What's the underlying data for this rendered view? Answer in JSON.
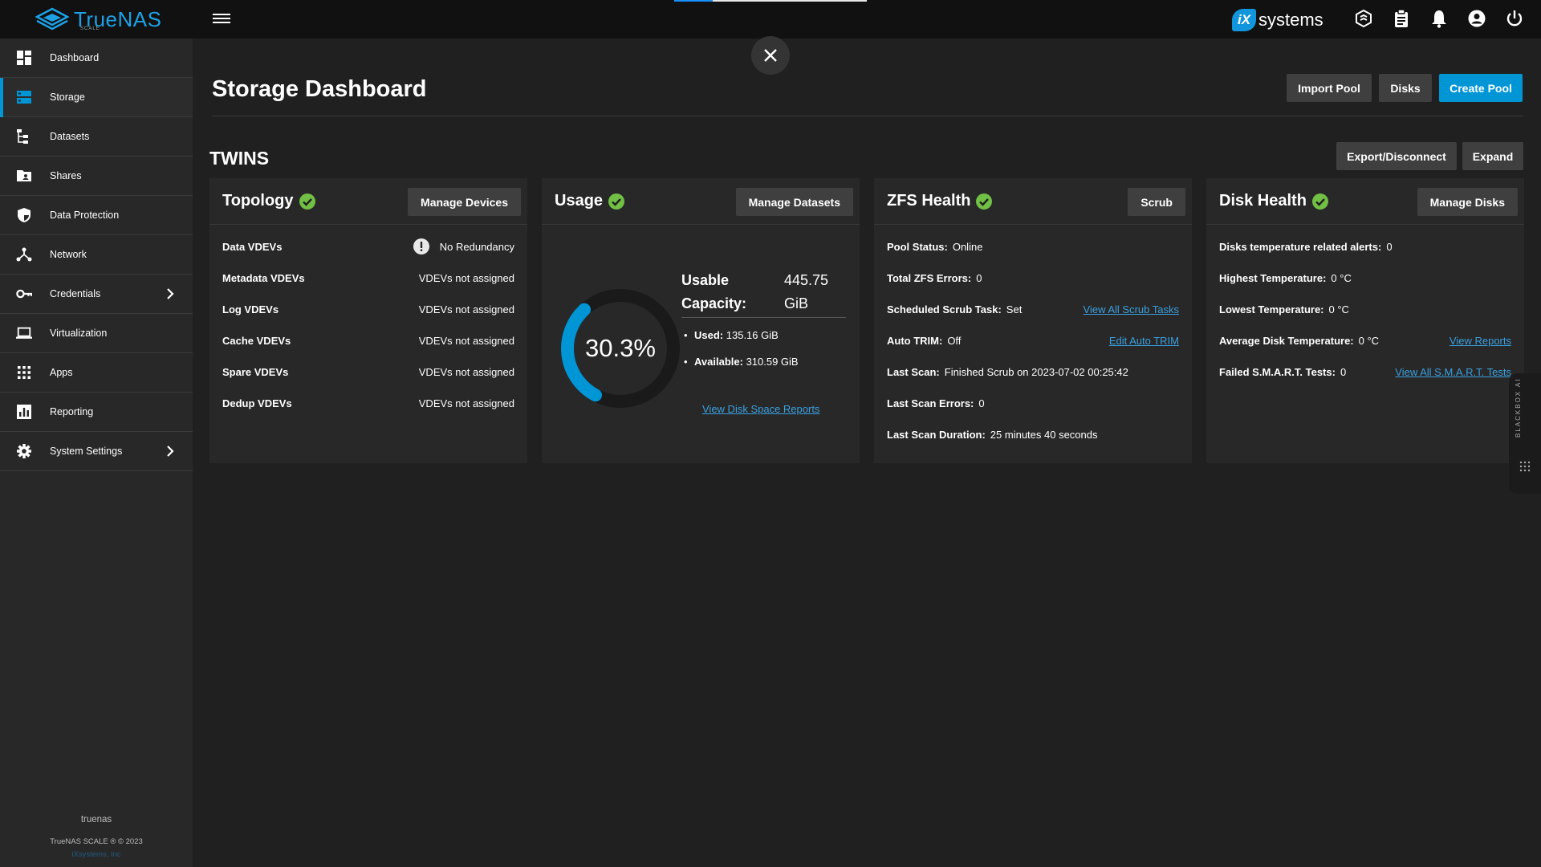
{
  "app": {
    "name": "TrueNAS",
    "sub": "SCALE",
    "vendor": "systems",
    "vendor_badge": "iX"
  },
  "sidebar": {
    "items": [
      {
        "label": "Dashboard",
        "icon": "dashboard-icon"
      },
      {
        "label": "Storage",
        "icon": "storage-icon"
      },
      {
        "label": "Datasets",
        "icon": "datasets-icon"
      },
      {
        "label": "Shares",
        "icon": "shares-icon"
      },
      {
        "label": "Data Protection",
        "icon": "shield-icon"
      },
      {
        "label": "Network",
        "icon": "network-icon"
      },
      {
        "label": "Credentials",
        "icon": "key-icon"
      },
      {
        "label": "Virtualization",
        "icon": "laptop-icon"
      },
      {
        "label": "Apps",
        "icon": "apps-grid-icon"
      },
      {
        "label": "Reporting",
        "icon": "bar-chart-icon"
      },
      {
        "label": "System Settings",
        "icon": "gear-icon"
      }
    ],
    "footer": {
      "hostname": "truenas",
      "copyright": "TrueNAS SCALE ® © 2023",
      "company": "iXsystems, Inc"
    }
  },
  "page": {
    "title": "Storage Dashboard",
    "import_pool": "Import Pool",
    "disks": "Disks",
    "create_pool": "Create Pool"
  },
  "pool": {
    "name": "TWINS",
    "export": "Export/Disconnect",
    "expand": "Expand"
  },
  "topology": {
    "title": "Topology",
    "button": "Manage Devices",
    "rows": [
      {
        "k": "Data VDEVs",
        "v": "No Redundancy"
      },
      {
        "k": "Metadata VDEVs",
        "v": "VDEVs not assigned"
      },
      {
        "k": "Log VDEVs",
        "v": "VDEVs not assigned"
      },
      {
        "k": "Cache VDEVs",
        "v": "VDEVs not assigned"
      },
      {
        "k": "Spare VDEVs",
        "v": "VDEVs not assigned"
      },
      {
        "k": "Dedup VDEVs",
        "v": "VDEVs not assigned"
      }
    ]
  },
  "usage": {
    "title": "Usage",
    "button": "Manage Datasets",
    "percent_text": "30.3%",
    "percent": 30.3,
    "cap_label_1": "Usable",
    "cap_label_2": "Capacity:",
    "cap_value_1": "445.75",
    "cap_value_2": "GiB",
    "used_k": "Used:",
    "used_v": "135.16 GiB",
    "avail_k": "Available:",
    "avail_v": "310.59 GiB",
    "link": "View Disk Space Reports"
  },
  "zfs": {
    "title": "ZFS Health",
    "button": "Scrub",
    "rows": [
      {
        "k": "Pool Status:",
        "v": "Online",
        "link": ""
      },
      {
        "k": "Total ZFS Errors:",
        "v": "0",
        "link": ""
      },
      {
        "k": "Scheduled Scrub Task:",
        "v": "Set",
        "link": "View All Scrub Tasks"
      },
      {
        "k": "Auto TRIM:",
        "v": "Off",
        "link": "Edit Auto TRIM"
      },
      {
        "k": "Last Scan:",
        "v": "Finished Scrub on 2023-07-02 00:25:42",
        "link": ""
      },
      {
        "k": "Last Scan Errors:",
        "v": "0",
        "link": ""
      },
      {
        "k": "Last Scan Duration:",
        "v": "25 minutes 40 seconds",
        "link": ""
      }
    ]
  },
  "disk": {
    "title": "Disk Health",
    "button": "Manage Disks",
    "rows": [
      {
        "k": "Disks temperature related alerts:",
        "v": "0",
        "link": ""
      },
      {
        "k": "Highest Temperature:",
        "v": "0 °C",
        "link": ""
      },
      {
        "k": "Lowest Temperature:",
        "v": "0 °C",
        "link": ""
      },
      {
        "k": "Average Disk Temperature:",
        "v": "0 °C",
        "link": "View Reports"
      },
      {
        "k": "Failed S.M.A.R.T. Tests:",
        "v": "0",
        "link": "View All S.M.A.R.T. Tests"
      }
    ]
  },
  "blackbox": "BLACKBOX AI",
  "colors": {
    "accent": "#0095d5",
    "ok": "#71bf44",
    "link": "#3aa0e0",
    "bg": "#202020",
    "card": "#282828"
  }
}
